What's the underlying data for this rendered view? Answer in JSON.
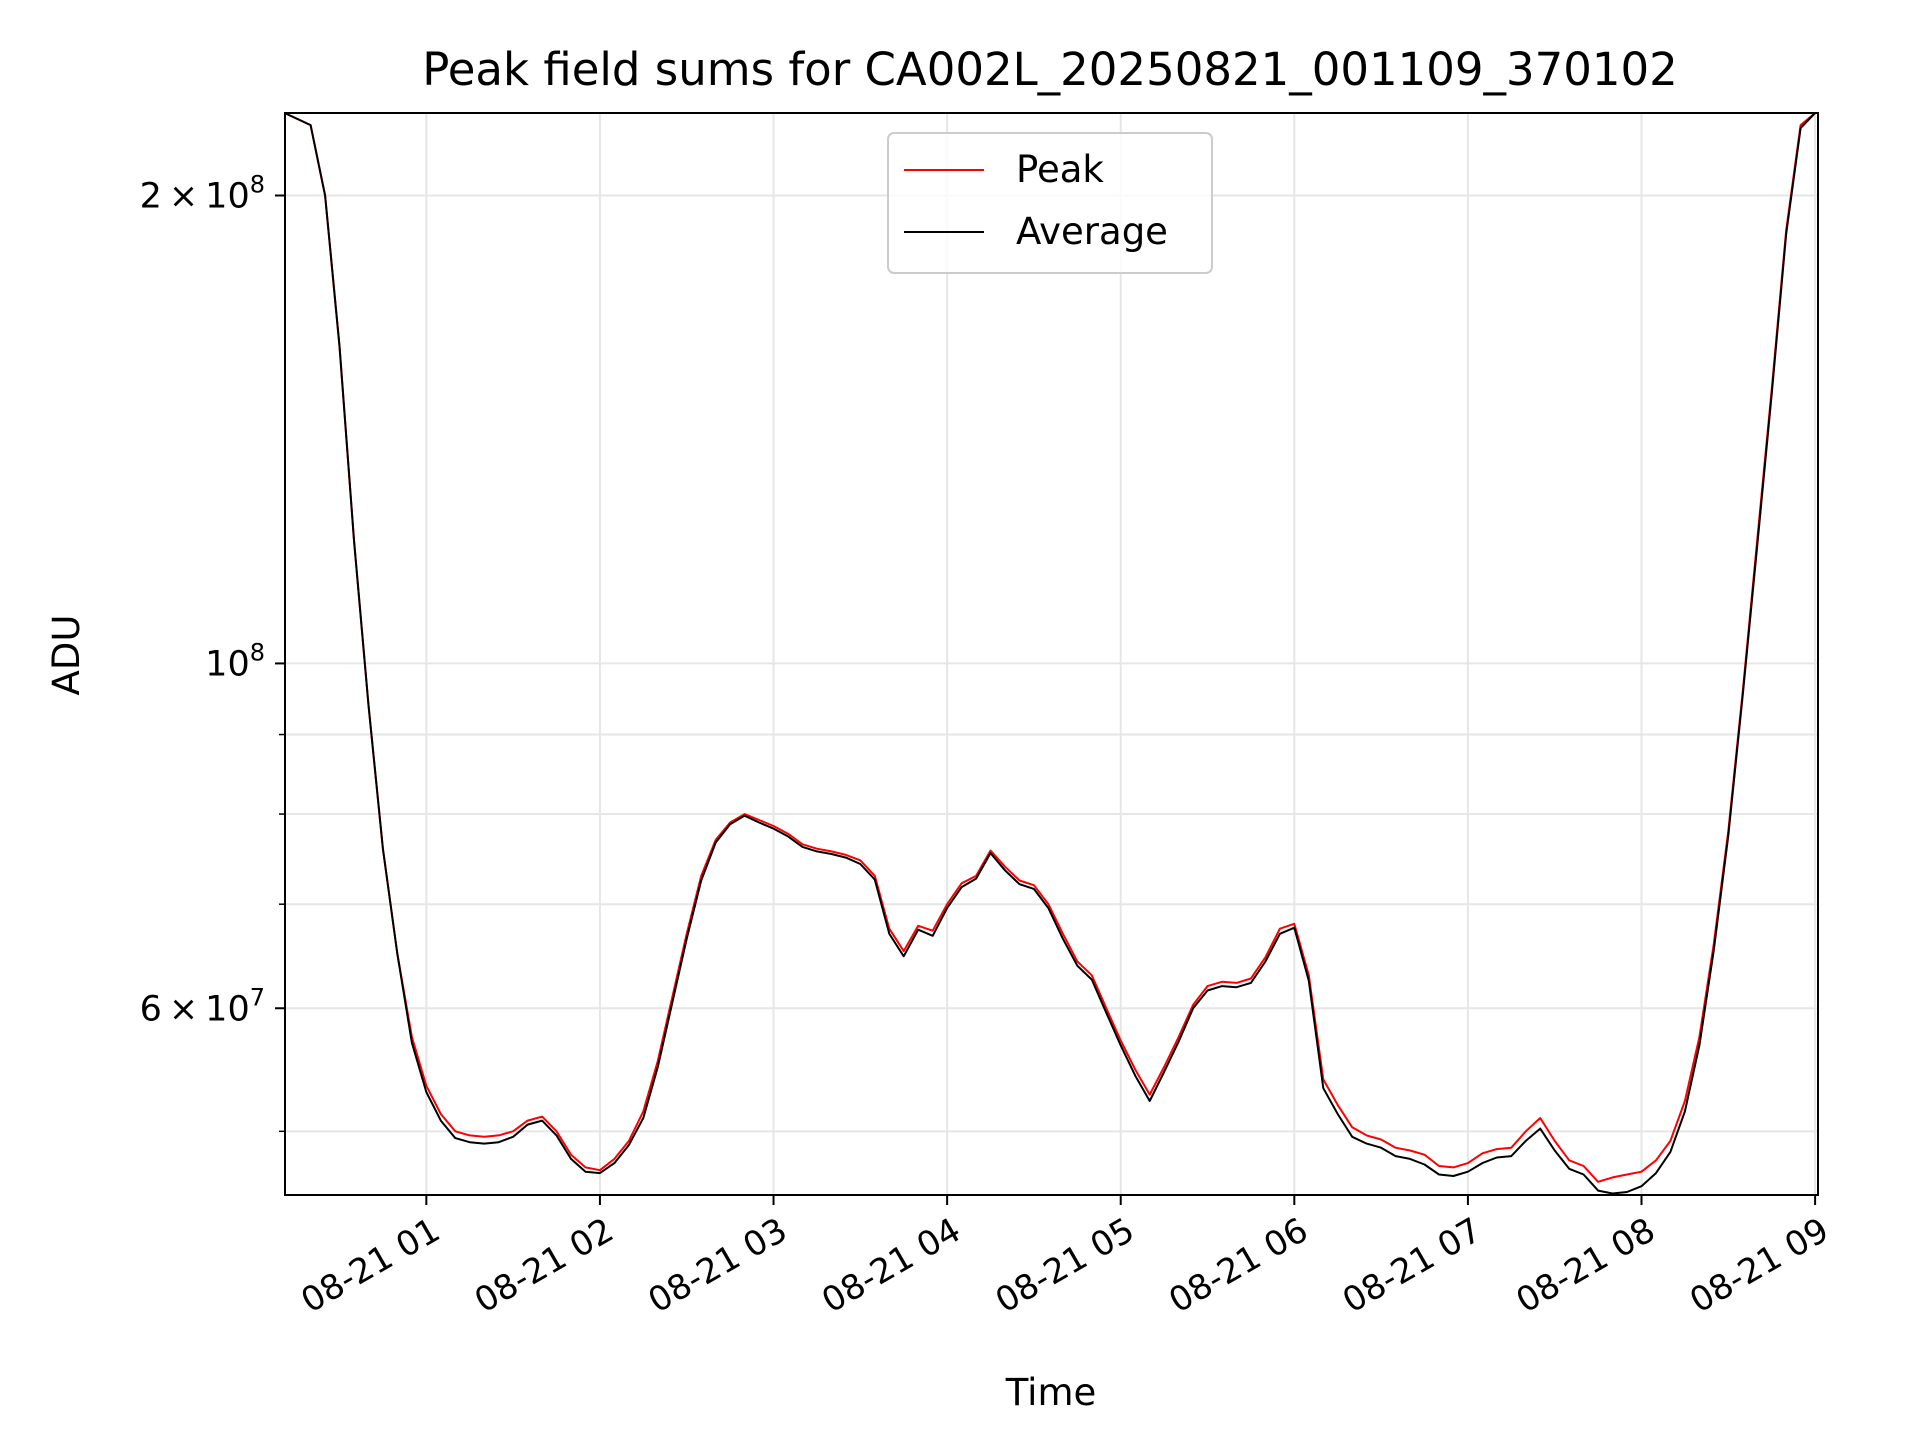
{
  "chart_data": {
    "type": "line",
    "title": "Peak field sums for CA002L_20250821_001109_370102",
    "xlabel": "Time",
    "ylabel": "ADU",
    "y_scale": "log",
    "ylim": [
      45500000,
      226000000
    ],
    "xlim": [
      "2025-08-21 00:11:09",
      "2025-08-21 09:01:00"
    ],
    "x_tick_labels": [
      "08-21 01",
      "08-21 02",
      "08-21 03",
      "08-21 04",
      "08-21 05",
      "08-21 06",
      "08-21 07",
      "08-21 08",
      "08-21 09"
    ],
    "x_ticks": [
      "2025-08-21 01:00",
      "2025-08-21 02:00",
      "2025-08-21 03:00",
      "2025-08-21 04:00",
      "2025-08-21 05:00",
      "2025-08-21 06:00",
      "2025-08-21 07:00",
      "2025-08-21 08:00",
      "2025-08-21 09:00"
    ],
    "y_major_ticks": [
      {
        "value": 100000000,
        "base": "10",
        "exp": "8",
        "coef": ""
      },
      {
        "value": 60000000,
        "base": "10",
        "exp": "7",
        "coef": "6"
      },
      {
        "value": 200000000,
        "base": "10",
        "exp": "8",
        "coef": "2"
      }
    ],
    "y_minor_gridlines": [
      50000000,
      70000000,
      80000000,
      90000000
    ],
    "grid": true,
    "legend": {
      "placement": "upper center",
      "entries": [
        {
          "label": "Peak",
          "color": "#ff0000"
        },
        {
          "label": "Average",
          "color": "#000000"
        }
      ]
    },
    "series": [
      {
        "name": "Peak",
        "color": "#ff0000",
        "points": [
          [
            "2025-08-21 00:11",
            226000000
          ],
          [
            "2025-08-21 00:20",
            222000000
          ],
          [
            "2025-08-21 00:25",
            200000000
          ],
          [
            "2025-08-21 00:30",
            160000000
          ],
          [
            "2025-08-21 00:35",
            120000000
          ],
          [
            "2025-08-21 00:40",
            94000000
          ],
          [
            "2025-08-21 00:45",
            76000000
          ],
          [
            "2025-08-21 00:50",
            65000000
          ],
          [
            "2025-08-21 00:55",
            57500000
          ],
          [
            "2025-08-21 01:00",
            53500000
          ],
          [
            "2025-08-21 01:05",
            51300000
          ],
          [
            "2025-08-21 01:10",
            50000000
          ],
          [
            "2025-08-21 01:15",
            49700000
          ],
          [
            "2025-08-21 01:20",
            49600000
          ],
          [
            "2025-08-21 01:25",
            49700000
          ],
          [
            "2025-08-21 01:30",
            50000000
          ],
          [
            "2025-08-21 01:35",
            50800000
          ],
          [
            "2025-08-21 01:40",
            51100000
          ],
          [
            "2025-08-21 01:45",
            50000000
          ],
          [
            "2025-08-21 01:50",
            48300000
          ],
          [
            "2025-08-21 01:55",
            47400000
          ],
          [
            "2025-08-21 02:00",
            47200000
          ],
          [
            "2025-08-21 02:05",
            48000000
          ],
          [
            "2025-08-21 02:10",
            49300000
          ],
          [
            "2025-08-21 02:15",
            51500000
          ],
          [
            "2025-08-21 02:20",
            55500000
          ],
          [
            "2025-08-21 02:25",
            61000000
          ],
          [
            "2025-08-21 02:30",
            67000000
          ],
          [
            "2025-08-21 02:35",
            73000000
          ],
          [
            "2025-08-21 02:40",
            77000000
          ],
          [
            "2025-08-21 02:45",
            79000000
          ],
          [
            "2025-08-21 02:50",
            80000000
          ],
          [
            "2025-08-21 02:55",
            79300000
          ],
          [
            "2025-08-21 03:00",
            78600000
          ],
          [
            "2025-08-21 03:05",
            77700000
          ],
          [
            "2025-08-21 03:10",
            76500000
          ],
          [
            "2025-08-21 03:15",
            76000000
          ],
          [
            "2025-08-21 03:20",
            75700000
          ],
          [
            "2025-08-21 03:25",
            75300000
          ],
          [
            "2025-08-21 03:30",
            74700000
          ],
          [
            "2025-08-21 03:35",
            73000000
          ],
          [
            "2025-08-21 03:40",
            67500000
          ],
          [
            "2025-08-21 03:45",
            65300000
          ],
          [
            "2025-08-21 03:50",
            67800000
          ],
          [
            "2025-08-21 03:55",
            67300000
          ],
          [
            "2025-08-21 04:00",
            70000000
          ],
          [
            "2025-08-21 04:05",
            72200000
          ],
          [
            "2025-08-21 04:10",
            73000000
          ],
          [
            "2025-08-21 04:15",
            75800000
          ],
          [
            "2025-08-21 04:20",
            74000000
          ],
          [
            "2025-08-21 04:25",
            72500000
          ],
          [
            "2025-08-21 04:30",
            72000000
          ],
          [
            "2025-08-21 04:35",
            70000000
          ],
          [
            "2025-08-21 04:40",
            67000000
          ],
          [
            "2025-08-21 04:45",
            64300000
          ],
          [
            "2025-08-21 04:50",
            63000000
          ],
          [
            "2025-08-21 04:55",
            60000000
          ],
          [
            "2025-08-21 05:00",
            57200000
          ],
          [
            "2025-08-21 05:05",
            54800000
          ],
          [
            "2025-08-21 05:10",
            52800000
          ],
          [
            "2025-08-21 05:15",
            55000000
          ],
          [
            "2025-08-21 05:20",
            57500000
          ],
          [
            "2025-08-21 05:25",
            60300000
          ],
          [
            "2025-08-21 05:30",
            62000000
          ],
          [
            "2025-08-21 05:35",
            62400000
          ],
          [
            "2025-08-21 05:40",
            62300000
          ],
          [
            "2025-08-21 05:45",
            62700000
          ],
          [
            "2025-08-21 05:50",
            64700000
          ],
          [
            "2025-08-21 05:55",
            67500000
          ],
          [
            "2025-08-21 06:00",
            68000000
          ],
          [
            "2025-08-21 06:05",
            63000000
          ],
          [
            "2025-08-21 06:10",
            54000000
          ],
          [
            "2025-08-21 06:15",
            52000000
          ],
          [
            "2025-08-21 06:20",
            50300000
          ],
          [
            "2025-08-21 06:25",
            49700000
          ],
          [
            "2025-08-21 06:30",
            49400000
          ],
          [
            "2025-08-21 06:35",
            48800000
          ],
          [
            "2025-08-21 06:40",
            48600000
          ],
          [
            "2025-08-21 06:45",
            48300000
          ],
          [
            "2025-08-21 06:50",
            47500000
          ],
          [
            "2025-08-21 06:55",
            47400000
          ],
          [
            "2025-08-21 07:00",
            47700000
          ],
          [
            "2025-08-21 07:05",
            48400000
          ],
          [
            "2025-08-21 07:10",
            48700000
          ],
          [
            "2025-08-21 07:15",
            48800000
          ],
          [
            "2025-08-21 07:20",
            50000000
          ],
          [
            "2025-08-21 07:25",
            51000000
          ],
          [
            "2025-08-21 07:30",
            49300000
          ],
          [
            "2025-08-21 07:35",
            47900000
          ],
          [
            "2025-08-21 07:40",
            47500000
          ],
          [
            "2025-08-21 07:45",
            46400000
          ],
          [
            "2025-08-21 07:50",
            46700000
          ],
          [
            "2025-08-21 07:55",
            46900000
          ],
          [
            "2025-08-21 08:00",
            47100000
          ],
          [
            "2025-08-21 08:05",
            47900000
          ],
          [
            "2025-08-21 08:10",
            49300000
          ],
          [
            "2025-08-21 08:15",
            52300000
          ],
          [
            "2025-08-21 08:20",
            57500000
          ],
          [
            "2025-08-21 08:25",
            66000000
          ],
          [
            "2025-08-21 08:30",
            78000000
          ],
          [
            "2025-08-21 08:35",
            96000000
          ],
          [
            "2025-08-21 08:40",
            120000000
          ],
          [
            "2025-08-21 08:45",
            150000000
          ],
          [
            "2025-08-21 08:50",
            190000000
          ],
          [
            "2025-08-21 08:55",
            222000000
          ],
          [
            "2025-08-21 09:00",
            226000000
          ]
        ]
      },
      {
        "name": "Average",
        "color": "#000000",
        "points": [
          [
            "2025-08-21 00:11",
            226000000
          ],
          [
            "2025-08-21 00:20",
            222000000
          ],
          [
            "2025-08-21 00:25",
            200000000
          ],
          [
            "2025-08-21 00:30",
            160000000
          ],
          [
            "2025-08-21 00:35",
            120000000
          ],
          [
            "2025-08-21 00:40",
            94000000
          ],
          [
            "2025-08-21 00:45",
            76000000
          ],
          [
            "2025-08-21 00:50",
            65000000
          ],
          [
            "2025-08-21 00:55",
            57000000
          ],
          [
            "2025-08-21 01:00",
            53000000
          ],
          [
            "2025-08-21 01:05",
            50800000
          ],
          [
            "2025-08-21 01:10",
            49500000
          ],
          [
            "2025-08-21 01:15",
            49200000
          ],
          [
            "2025-08-21 01:20",
            49100000
          ],
          [
            "2025-08-21 01:25",
            49200000
          ],
          [
            "2025-08-21 01:30",
            49600000
          ],
          [
            "2025-08-21 01:35",
            50500000
          ],
          [
            "2025-08-21 01:40",
            50800000
          ],
          [
            "2025-08-21 01:45",
            49700000
          ],
          [
            "2025-08-21 01:50",
            48000000
          ],
          [
            "2025-08-21 01:55",
            47100000
          ],
          [
            "2025-08-21 02:00",
            47000000
          ],
          [
            "2025-08-21 02:05",
            47700000
          ],
          [
            "2025-08-21 02:10",
            49000000
          ],
          [
            "2025-08-21 02:15",
            51000000
          ],
          [
            "2025-08-21 02:20",
            55000000
          ],
          [
            "2025-08-21 02:25",
            60500000
          ],
          [
            "2025-08-21 02:30",
            66500000
          ],
          [
            "2025-08-21 02:35",
            72500000
          ],
          [
            "2025-08-21 02:40",
            76700000
          ],
          [
            "2025-08-21 02:45",
            78800000
          ],
          [
            "2025-08-21 02:50",
            79800000
          ],
          [
            "2025-08-21 02:55",
            79000000
          ],
          [
            "2025-08-21 03:00",
            78300000
          ],
          [
            "2025-08-21 03:05",
            77400000
          ],
          [
            "2025-08-21 03:10",
            76200000
          ],
          [
            "2025-08-21 03:15",
            75700000
          ],
          [
            "2025-08-21 03:20",
            75400000
          ],
          [
            "2025-08-21 03:25",
            75000000
          ],
          [
            "2025-08-21 03:30",
            74300000
          ],
          [
            "2025-08-21 03:35",
            72600000
          ],
          [
            "2025-08-21 03:40",
            67000000
          ],
          [
            "2025-08-21 03:45",
            64800000
          ],
          [
            "2025-08-21 03:50",
            67400000
          ],
          [
            "2025-08-21 03:55",
            66800000
          ],
          [
            "2025-08-21 04:00",
            69600000
          ],
          [
            "2025-08-21 04:05",
            71800000
          ],
          [
            "2025-08-21 04:10",
            72700000
          ],
          [
            "2025-08-21 04:15",
            75500000
          ],
          [
            "2025-08-21 04:20",
            73600000
          ],
          [
            "2025-08-21 04:25",
            72100000
          ],
          [
            "2025-08-21 04:30",
            71600000
          ],
          [
            "2025-08-21 04:35",
            69600000
          ],
          [
            "2025-08-21 04:40",
            66500000
          ],
          [
            "2025-08-21 04:45",
            63900000
          ],
          [
            "2025-08-21 04:50",
            62600000
          ],
          [
            "2025-08-21 04:55",
            59600000
          ],
          [
            "2025-08-21 05:00",
            56800000
          ],
          [
            "2025-08-21 05:05",
            54300000
          ],
          [
            "2025-08-21 05:10",
            52300000
          ],
          [
            "2025-08-21 05:15",
            54600000
          ],
          [
            "2025-08-21 05:20",
            57100000
          ],
          [
            "2025-08-21 05:25",
            60000000
          ],
          [
            "2025-08-21 05:30",
            61600000
          ],
          [
            "2025-08-21 05:35",
            62000000
          ],
          [
            "2025-08-21 05:40",
            61900000
          ],
          [
            "2025-08-21 05:45",
            62300000
          ],
          [
            "2025-08-21 05:50",
            64300000
          ],
          [
            "2025-08-21 05:55",
            67000000
          ],
          [
            "2025-08-21 06:00",
            67600000
          ],
          [
            "2025-08-21 06:05",
            62500000
          ],
          [
            "2025-08-21 06:10",
            53300000
          ],
          [
            "2025-08-21 06:15",
            51300000
          ],
          [
            "2025-08-21 06:20",
            49600000
          ],
          [
            "2025-08-21 06:25",
            49100000
          ],
          [
            "2025-08-21 06:30",
            48800000
          ],
          [
            "2025-08-21 06:35",
            48200000
          ],
          [
            "2025-08-21 06:40",
            48000000
          ],
          [
            "2025-08-21 06:45",
            47600000
          ],
          [
            "2025-08-21 06:50",
            46900000
          ],
          [
            "2025-08-21 06:55",
            46800000
          ],
          [
            "2025-08-21 07:00",
            47100000
          ],
          [
            "2025-08-21 07:05",
            47700000
          ],
          [
            "2025-08-21 07:10",
            48100000
          ],
          [
            "2025-08-21 07:15",
            48200000
          ],
          [
            "2025-08-21 07:20",
            49300000
          ],
          [
            "2025-08-21 07:25",
            50200000
          ],
          [
            "2025-08-21 07:30",
            48600000
          ],
          [
            "2025-08-21 07:35",
            47300000
          ],
          [
            "2025-08-21 07:40",
            46900000
          ],
          [
            "2025-08-21 07:45",
            45800000
          ],
          [
            "2025-08-21 07:50",
            45600000
          ],
          [
            "2025-08-21 07:55",
            45700000
          ],
          [
            "2025-08-21 08:00",
            46100000
          ],
          [
            "2025-08-21 08:05",
            47000000
          ],
          [
            "2025-08-21 08:10",
            48500000
          ],
          [
            "2025-08-21 08:15",
            51500000
          ],
          [
            "2025-08-21 08:20",
            56800000
          ],
          [
            "2025-08-21 08:25",
            65400000
          ],
          [
            "2025-08-21 08:30",
            77500000
          ],
          [
            "2025-08-21 08:35",
            95500000
          ],
          [
            "2025-08-21 08:40",
            119000000
          ],
          [
            "2025-08-21 08:45",
            149000000
          ],
          [
            "2025-08-21 08:50",
            189000000
          ],
          [
            "2025-08-21 08:55",
            221000000
          ],
          [
            "2025-08-21 09:00",
            226000000
          ]
        ]
      }
    ]
  }
}
